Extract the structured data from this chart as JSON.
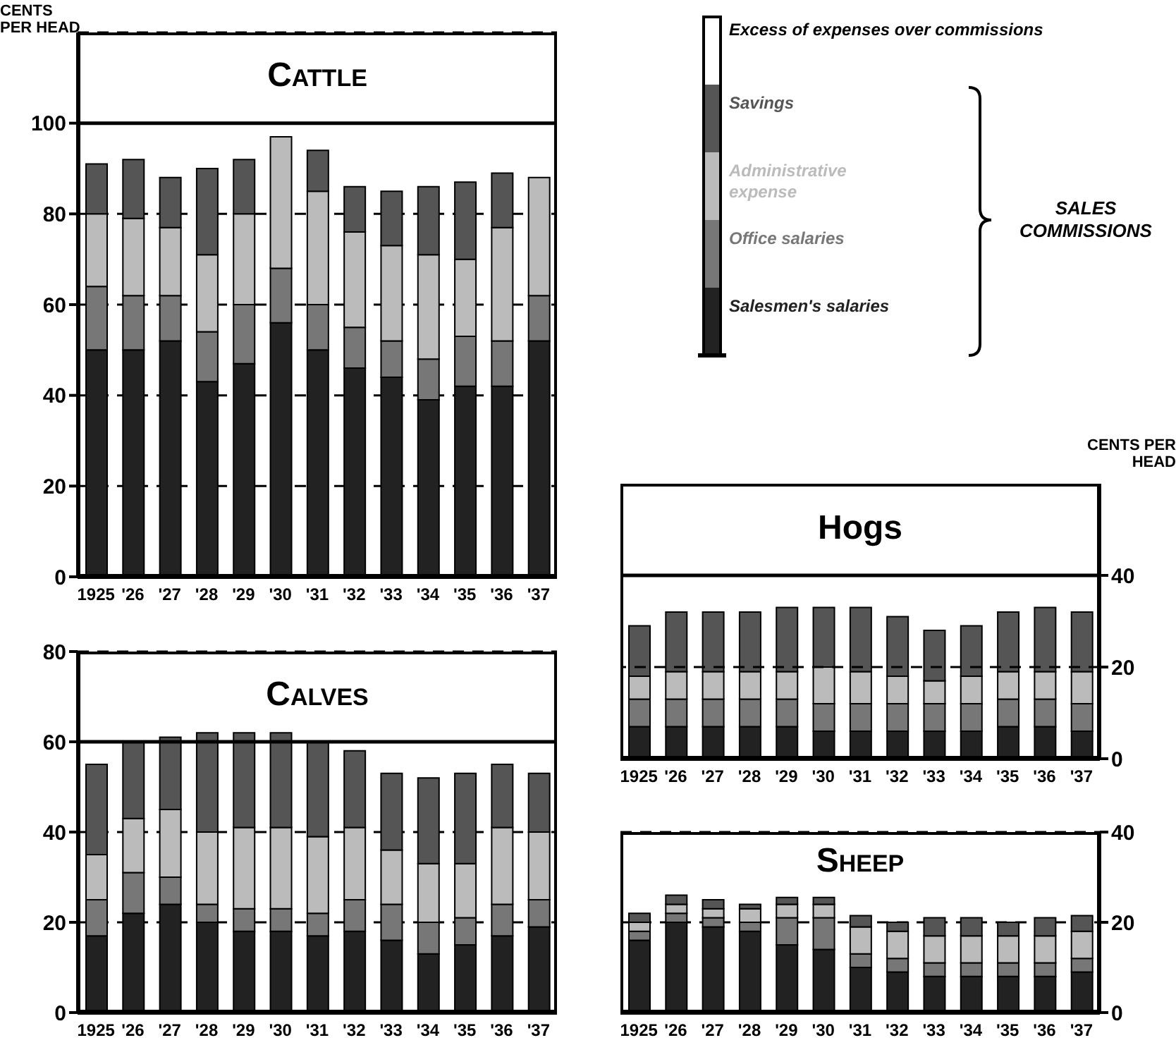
{
  "chart_data": [
    {
      "type": "bar",
      "title": "Cattle",
      "ylabel": "CENTS PER HEAD",
      "categories": [
        "1925",
        "'26",
        "'27",
        "'28",
        "'29",
        "'30",
        "'31",
        "'32",
        "'33",
        "'34",
        "'35",
        "'36",
        "'37"
      ],
      "stacked": true,
      "ylim": [
        0,
        120
      ],
      "yticks": [
        0,
        20,
        40,
        60,
        80,
        100
      ],
      "grid": "y",
      "ref_lines": [
        {
          "axis": "y",
          "value": 100
        }
      ],
      "legend": "top right",
      "annotations": [
        "SALES COMMISSIONS"
      ],
      "series": [
        {
          "name": "Salesmen's salaries",
          "color": "#222222",
          "values": [
            50,
            50,
            52,
            43,
            47,
            56,
            50,
            46,
            44,
            39,
            42,
            42,
            52
          ]
        },
        {
          "name": "Office salaries",
          "color": "#777777",
          "values": [
            14,
            12,
            10,
            11,
            13,
            12,
            10,
            9,
            8,
            9,
            11,
            10,
            10
          ]
        },
        {
          "name": "Administrative expense",
          "color": "#bbbbbb",
          "values": [
            16,
            17,
            15,
            17,
            20,
            29,
            25,
            21,
            21,
            23,
            17,
            25,
            26
          ]
        },
        {
          "name": "Savings",
          "color": "#555555",
          "values": [
            11,
            13,
            11,
            19,
            12,
            0,
            9,
            10,
            12,
            15,
            17,
            12,
            0
          ]
        },
        {
          "name": "Excess of expenses over commissions",
          "values": [
            0,
            0,
            0,
            0,
            0,
            0,
            0,
            0,
            0,
            0,
            0,
            0,
            0
          ]
        }
      ]
    },
    {
      "type": "bar",
      "title": "Calves",
      "categories": [
        "1925",
        "'26",
        "'27",
        "'28",
        "'29",
        "'30",
        "'31",
        "'32",
        "'33",
        "'34",
        "'35",
        "'36",
        "'37"
      ],
      "stacked": true,
      "ylim": [
        0,
        80
      ],
      "yticks": [
        0,
        20,
        40,
        60,
        80
      ],
      "grid": "y",
      "ref_lines": [
        {
          "axis": "y",
          "value": 60
        }
      ],
      "series": [
        {
          "color": "#222222",
          "values": [
            17,
            22,
            24,
            20,
            18,
            18,
            17,
            18,
            16,
            13,
            15,
            17,
            19
          ]
        },
        {
          "color": "#777777",
          "values": [
            8,
            9,
            6,
            4,
            5,
            5,
            5,
            7,
            8,
            7,
            6,
            7,
            6
          ]
        },
        {
          "color": "#bbbbbb",
          "values": [
            10,
            12,
            15,
            16,
            18,
            18,
            17,
            16,
            12,
            13,
            12,
            17,
            15
          ]
        },
        {
          "color": "#555555",
          "values": [
            20,
            17,
            16,
            22,
            21,
            21,
            21,
            17,
            17,
            19,
            20,
            14,
            13
          ]
        }
      ]
    },
    {
      "type": "bar",
      "title": "Hogs",
      "ylabel": "CENTS PER HEAD",
      "categories": [
        "1925",
        "'26",
        "'27",
        "'28",
        "'29",
        "'30",
        "'31",
        "'32",
        "'33",
        "'34",
        "'35",
        "'36",
        "'37"
      ],
      "stacked": true,
      "ylim": [
        0,
        60
      ],
      "yticks": [
        0,
        20,
        40
      ],
      "ref_lines": [
        {
          "axis": "y",
          "value": 40
        },
        {
          "axis": "y",
          "value": 20,
          "line_style": "dashed"
        }
      ],
      "series": [
        {
          "color": "#222222",
          "values": [
            7,
            7,
            7,
            7,
            7,
            6,
            6,
            6,
            6,
            6,
            7,
            7,
            6
          ]
        },
        {
          "color": "#777777",
          "values": [
            6,
            6,
            6,
            6,
            6,
            6,
            6,
            6,
            6,
            6,
            6,
            6,
            6
          ]
        },
        {
          "color": "#bbbbbb",
          "values": [
            5,
            6,
            6,
            6,
            6,
            8,
            7,
            6,
            5,
            6,
            6,
            6,
            7
          ]
        },
        {
          "color": "#555555",
          "values": [
            11,
            13,
            13,
            13,
            14,
            13,
            14,
            13,
            11,
            11,
            13,
            14,
            13
          ]
        }
      ]
    },
    {
      "type": "bar",
      "title": "Sheep",
      "categories": [
        "1925",
        "'26",
        "'27",
        "'28",
        "'29",
        "'30",
        "'31",
        "'32",
        "'33",
        "'34",
        "'35",
        "'36",
        "'37"
      ],
      "stacked": true,
      "ylim": [
        0,
        40
      ],
      "yticks": [
        0,
        20,
        40
      ],
      "grid": "y",
      "series": [
        {
          "color": "#222222",
          "values": [
            16,
            20,
            19,
            18,
            15,
            14,
            10,
            9,
            8,
            8,
            8,
            8,
            9
          ]
        },
        {
          "color": "#777777",
          "values": [
            2,
            2,
            2,
            2,
            6,
            7,
            3,
            3,
            3,
            3,
            3,
            3,
            3
          ]
        },
        {
          "color": "#bbbbbb",
          "values": [
            2,
            2,
            2,
            3,
            3,
            3,
            6,
            6,
            6,
            6,
            6,
            6,
            6
          ]
        },
        {
          "color": "#555555",
          "values": [
            2,
            2,
            2,
            1,
            1.5,
            1.5,
            2.5,
            2,
            4,
            4,
            3,
            4,
            3.5
          ]
        }
      ]
    }
  ]
}
